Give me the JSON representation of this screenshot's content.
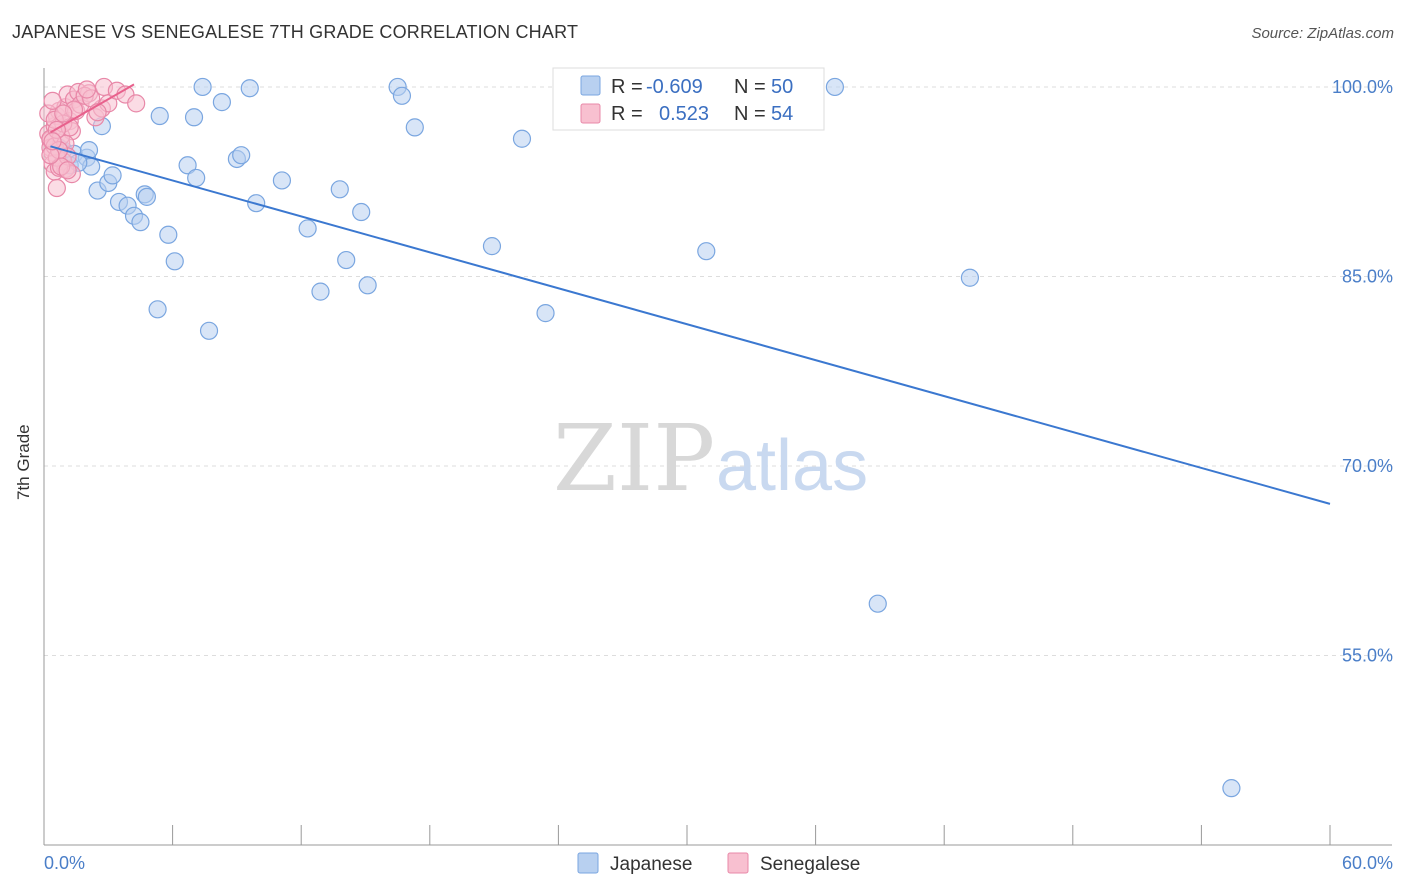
{
  "header": {
    "title": "JAPANESE VS SENEGALESE 7TH GRADE CORRELATION CHART",
    "source": "Source: ZipAtlas.com"
  },
  "watermark": {
    "zip": "ZIP",
    "atlas": "atlas"
  },
  "colors": {
    "japanese_fill": "#b8d0f0",
    "japanese_stroke": "#7aa6e0",
    "japanese_line": "#3b78d0",
    "senegalese_fill": "#f8c0d0",
    "senegalese_stroke": "#e888a8",
    "senegalese_line": "#e8608c",
    "tick_label": "#4a7ec8",
    "grid": "#dddddd"
  },
  "legend": {
    "rows": [
      {
        "r_label": "R =",
        "r_value": "-0.609",
        "n_label": "N =",
        "n_value": "50"
      },
      {
        "r_label": "R =",
        "r_value": "0.523",
        "n_label": "N =",
        "n_value": "54"
      }
    ]
  },
  "chart_data": {
    "type": "scatter",
    "title": "JAPANESE VS SENEGALESE 7TH GRADE CORRELATION CHART",
    "xlabel": "",
    "ylabel": "7th Grade",
    "xlim": [
      0,
      60
    ],
    "ylim": [
      40,
      101.5
    ],
    "x_tick_labels": [
      "0.0%",
      "60.0%"
    ],
    "y_ticks": [
      100,
      85,
      70,
      55
    ],
    "y_tick_labels": [
      "100.0%",
      "85.0%",
      "70.0%",
      "55.0%"
    ],
    "grid": "horizontal-dashed",
    "legend_position": "top-center",
    "series": [
      {
        "name": "Japanese",
        "r": -0.609,
        "n": 50,
        "trend": {
          "x": [
            0.3,
            60.0
          ],
          "y": [
            95.3,
            67.0
          ]
        },
        "points": [
          [
            0.9,
            95.0
          ],
          [
            1.4,
            94.7
          ],
          [
            2.0,
            94.4
          ],
          [
            1.2,
            93.8
          ],
          [
            2.2,
            93.7
          ],
          [
            2.5,
            91.8
          ],
          [
            3.0,
            92.4
          ],
          [
            3.2,
            93.0
          ],
          [
            3.5,
            90.9
          ],
          [
            3.9,
            90.6
          ],
          [
            4.2,
            89.8
          ],
          [
            4.5,
            89.3
          ],
          [
            4.7,
            91.5
          ],
          [
            4.8,
            91.3
          ],
          [
            5.8,
            88.3
          ],
          [
            6.1,
            86.2
          ],
          [
            5.3,
            82.4
          ],
          [
            6.7,
            93.8
          ],
          [
            7.1,
            92.8
          ],
          [
            7.7,
            80.7
          ],
          [
            7.0,
            97.6
          ],
          [
            7.4,
            100.0
          ],
          [
            8.3,
            98.8
          ],
          [
            9.0,
            94.3
          ],
          [
            9.2,
            94.6
          ],
          [
            9.6,
            99.9
          ],
          [
            9.9,
            90.8
          ],
          [
            11.1,
            92.6
          ],
          [
            12.3,
            88.8
          ],
          [
            12.9,
            83.8
          ],
          [
            13.8,
            91.9
          ],
          [
            14.1,
            86.3
          ],
          [
            14.8,
            90.1
          ],
          [
            15.1,
            84.3
          ],
          [
            16.5,
            100.0
          ],
          [
            16.7,
            99.3
          ],
          [
            17.3,
            96.8
          ],
          [
            20.9,
            87.4
          ],
          [
            22.3,
            95.9
          ],
          [
            23.4,
            82.1
          ],
          [
            5.4,
            97.7
          ],
          [
            2.7,
            96.9
          ],
          [
            30.9,
            87.0
          ],
          [
            36.9,
            100.0
          ],
          [
            38.9,
            59.1
          ],
          [
            43.2,
            84.9
          ],
          [
            55.4,
            44.5
          ],
          [
            0.7,
            95.2
          ],
          [
            1.6,
            94.0
          ],
          [
            2.1,
            95.0
          ]
        ]
      },
      {
        "name": "Senegalese",
        "r": 0.523,
        "n": 54,
        "trend": {
          "x": [
            0.3,
            4.2
          ],
          "y": [
            96.4,
            100.2
          ]
        },
        "points": [
          [
            0.2,
            96.3
          ],
          [
            0.3,
            95.8
          ],
          [
            0.3,
            95.2
          ],
          [
            0.4,
            94.8
          ],
          [
            0.4,
            93.9
          ],
          [
            0.5,
            93.3
          ],
          [
            0.5,
            96.9
          ],
          [
            0.6,
            97.7
          ],
          [
            0.7,
            98.1
          ],
          [
            0.8,
            95.6
          ],
          [
            0.9,
            94.1
          ],
          [
            1.0,
            93.5
          ],
          [
            1.0,
            98.4
          ],
          [
            1.1,
            99.4
          ],
          [
            1.2,
            97.3
          ],
          [
            1.3,
            96.5
          ],
          [
            1.4,
            99.0
          ],
          [
            1.5,
            98.1
          ],
          [
            1.6,
            99.6
          ],
          [
            1.7,
            98.6
          ],
          [
            0.6,
            92.0
          ],
          [
            1.3,
            93.1
          ],
          [
            2.1,
            99.5
          ],
          [
            2.4,
            97.6
          ],
          [
            2.7,
            98.3
          ],
          [
            2.8,
            100.0
          ],
          [
            3.0,
            98.7
          ],
          [
            3.4,
            99.7
          ],
          [
            3.8,
            99.4
          ],
          [
            4.3,
            98.7
          ],
          [
            0.2,
            97.9
          ],
          [
            0.3,
            95.9
          ],
          [
            0.5,
            95.3
          ],
          [
            0.6,
            94.4
          ],
          [
            0.7,
            93.6
          ],
          [
            0.8,
            96.1
          ],
          [
            0.9,
            97.1
          ],
          [
            1.0,
            95.5
          ],
          [
            1.1,
            94.5
          ],
          [
            1.2,
            96.8
          ],
          [
            0.4,
            98.9
          ],
          [
            0.5,
            97.4
          ],
          [
            0.7,
            95.0
          ],
          [
            0.8,
            93.7
          ],
          [
            1.4,
            98.2
          ],
          [
            1.9,
            99.3
          ],
          [
            2.2,
            99.1
          ],
          [
            0.3,
            94.6
          ],
          [
            0.6,
            96.6
          ],
          [
            0.9,
            97.9
          ],
          [
            1.1,
            93.4
          ],
          [
            2.0,
            99.8
          ],
          [
            0.4,
            95.7
          ],
          [
            2.5,
            98.0
          ]
        ]
      }
    ]
  }
}
